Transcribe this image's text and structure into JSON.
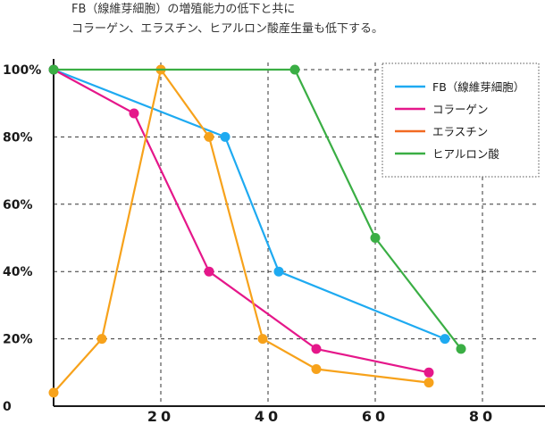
{
  "chart_data": {
    "type": "line",
    "title_lines": [
      "FB（線維芽細胞）の増殖能力の低下と共に",
      "コラーゲン、エラスチン、ヒアルロン酸産生量も低下する。"
    ],
    "xlabel": "",
    "ylabel": "",
    "xlim": [
      0,
      90
    ],
    "ylim": [
      0,
      100
    ],
    "x_ticks": [
      {
        "value": 20,
        "label": "20"
      },
      {
        "value": 40,
        "label": "40"
      },
      {
        "value": 60,
        "label": "60"
      },
      {
        "value": 80,
        "label": "80"
      }
    ],
    "y_ticks": [
      {
        "value": 0,
        "label": "0"
      },
      {
        "value": 20,
        "label": "20%"
      },
      {
        "value": 40,
        "label": "40%"
      },
      {
        "value": 60,
        "label": "60%"
      },
      {
        "value": 80,
        "label": "80%"
      },
      {
        "value": 100,
        "label": "100%"
      }
    ],
    "grid": "dashed",
    "legend_position": "top-right",
    "series": [
      {
        "name": "FB（線維芽細胞）",
        "color": "#1eaaf1",
        "points": [
          [
            0,
            100
          ],
          [
            32,
            80
          ],
          [
            42,
            40
          ],
          [
            73,
            20
          ]
        ]
      },
      {
        "name": "コラーゲン",
        "color": "#e5178a",
        "points": [
          [
            0,
            100
          ],
          [
            15,
            87
          ],
          [
            29,
            40
          ],
          [
            49,
            17
          ],
          [
            70,
            10
          ]
        ]
      },
      {
        "name": "エラスチン",
        "color": "#f7a21b",
        "legend_color": "#f26a22",
        "points": [
          [
            0,
            4
          ],
          [
            9,
            20
          ],
          [
            20,
            100
          ],
          [
            29,
            80
          ],
          [
            39,
            20
          ],
          [
            49,
            11
          ],
          [
            70,
            7
          ]
        ]
      },
      {
        "name": "ヒアルロン酸",
        "color": "#3aae44",
        "points": [
          [
            0,
            100
          ],
          [
            45,
            100
          ],
          [
            60,
            50
          ],
          [
            76,
            17
          ]
        ]
      }
    ]
  }
}
